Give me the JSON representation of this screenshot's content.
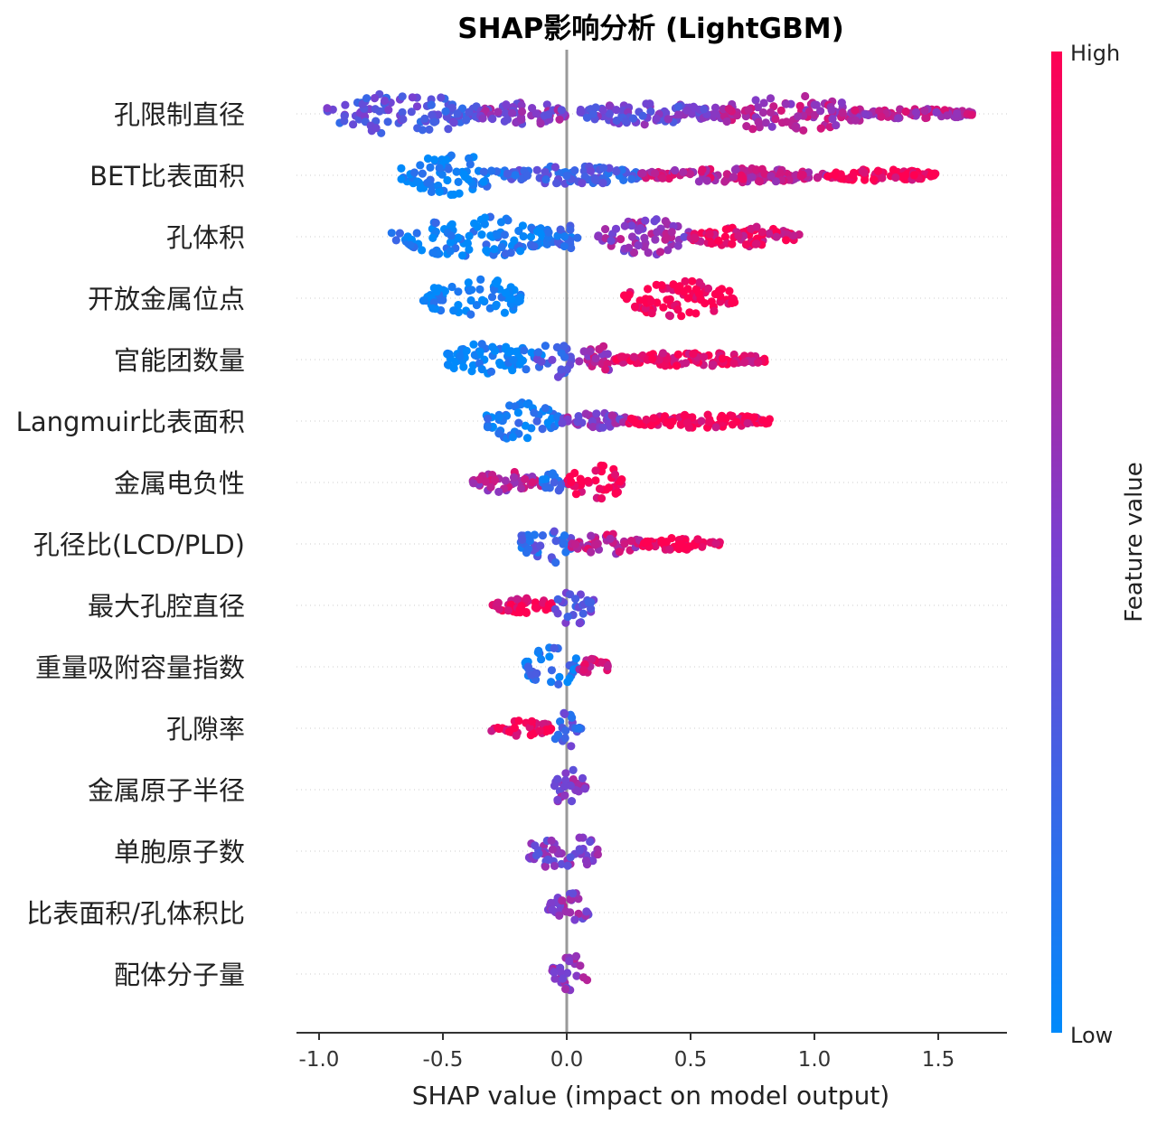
{
  "chart_data": {
    "type": "scatter",
    "title": "SHAP影响分析 (LightGBM)",
    "xlabel": "SHAP value (impact on model output)",
    "xlim": [
      -1.1,
      1.78
    ],
    "x_ticks": [
      -1.0,
      -0.5,
      0.0,
      0.5,
      1.0,
      1.5
    ],
    "x_tick_labels": [
      "-1.0",
      "-0.5",
      "0.0",
      "0.5",
      "1.0",
      "1.5"
    ],
    "colorbar": {
      "title": "Feature value",
      "high": "High",
      "low": "Low",
      "low_color": "#008afb",
      "high_color": "#ff0052"
    },
    "grid": "dotted per-feature row lines",
    "features": [
      {
        "name": "孔限制直径",
        "x_range": [
          -0.97,
          1.65
        ],
        "segments": [
          {
            "from": -0.97,
            "to": -0.35,
            "color": 0.35,
            "spread": 1.0
          },
          {
            "from": -0.35,
            "to": 0.0,
            "color": 0.55,
            "spread": 0.6
          },
          {
            "from": 0.05,
            "to": 0.6,
            "color": 0.45,
            "spread": 0.55
          },
          {
            "from": 0.6,
            "to": 1.2,
            "color": 0.7,
            "spread": 0.9
          },
          {
            "from": 1.2,
            "to": 1.65,
            "color": 0.7,
            "spread": 0.25
          }
        ]
      },
      {
        "name": "BET比表面积",
        "x_range": [
          -0.67,
          1.49
        ],
        "segments": [
          {
            "from": -0.67,
            "to": -0.25,
            "color": 0.05,
            "spread": 1.0
          },
          {
            "from": -0.25,
            "to": 0.3,
            "color": 0.3,
            "spread": 0.45
          },
          {
            "from": 0.3,
            "to": 1.05,
            "color": 0.75,
            "spread": 0.35
          },
          {
            "from": 1.05,
            "to": 1.49,
            "color": 0.97,
            "spread": 0.3
          }
        ]
      },
      {
        "name": "孔体积",
        "x_range": [
          -0.71,
          0.94
        ],
        "segments": [
          {
            "from": -0.71,
            "to": -0.05,
            "color": 0.08,
            "spread": 1.0
          },
          {
            "from": -0.05,
            "to": 0.05,
            "color": 0.2,
            "spread": 0.6
          },
          {
            "from": 0.12,
            "to": 0.5,
            "color": 0.6,
            "spread": 0.9
          },
          {
            "from": 0.5,
            "to": 0.94,
            "color": 0.9,
            "spread": 0.5
          }
        ]
      },
      {
        "name": "开放金属位点",
        "x_range": [
          -0.58,
          0.68
        ],
        "segments": [
          {
            "from": -0.58,
            "to": -0.17,
            "color": 0.0,
            "spread": 1.0
          },
          {
            "from": 0.22,
            "to": 0.68,
            "color": 1.0,
            "spread": 0.9
          }
        ]
      },
      {
        "name": "官能团数量",
        "x_range": [
          -0.5,
          0.8
        ],
        "segments": [
          {
            "from": -0.5,
            "to": -0.1,
            "color": 0.02,
            "spread": 0.8
          },
          {
            "from": -0.12,
            "to": 0.02,
            "color": 0.3,
            "spread": 0.9
          },
          {
            "from": 0.05,
            "to": 0.2,
            "color": 0.7,
            "spread": 0.8
          },
          {
            "from": 0.2,
            "to": 0.8,
            "color": 0.92,
            "spread": 0.35
          }
        ]
      },
      {
        "name": "Langmuir比表面积",
        "x_range": [
          -0.33,
          0.82
        ],
        "segments": [
          {
            "from": -0.33,
            "to": -0.02,
            "color": 0.1,
            "spread": 1.0
          },
          {
            "from": -0.02,
            "to": 0.25,
            "color": 0.55,
            "spread": 0.4
          },
          {
            "from": 0.25,
            "to": 0.82,
            "color": 0.95,
            "spread": 0.35
          }
        ]
      },
      {
        "name": "金属电负性",
        "x_range": [
          -0.38,
          0.23
        ],
        "segments": [
          {
            "from": -0.38,
            "to": -0.1,
            "color": 0.7,
            "spread": 0.55
          },
          {
            "from": -0.1,
            "to": 0.0,
            "color": 0.2,
            "spread": 0.5
          },
          {
            "from": 0.0,
            "to": 0.23,
            "color": 1.0,
            "spread": 1.0
          }
        ]
      },
      {
        "name": "孔径比(LCD/PLD)",
        "x_range": [
          -0.19,
          0.62
        ],
        "segments": [
          {
            "from": -0.19,
            "to": 0.02,
            "color": 0.25,
            "spread": 1.0
          },
          {
            "from": 0.02,
            "to": 0.3,
            "color": 0.75,
            "spread": 0.5
          },
          {
            "from": 0.3,
            "to": 0.62,
            "color": 1.0,
            "spread": 0.3
          }
        ]
      },
      {
        "name": "最大孔腔直径",
        "x_range": [
          -0.3,
          0.11
        ],
        "segments": [
          {
            "from": -0.3,
            "to": -0.05,
            "color": 0.95,
            "spread": 0.4
          },
          {
            "from": -0.05,
            "to": 0.11,
            "color": 0.35,
            "spread": 1.0
          }
        ]
      },
      {
        "name": "重量吸附容量指数",
        "x_range": [
          -0.17,
          0.17
        ],
        "segments": [
          {
            "from": -0.17,
            "to": 0.05,
            "color": 0.15,
            "spread": 1.0
          },
          {
            "from": 0.05,
            "to": 0.17,
            "color": 0.8,
            "spread": 0.4
          }
        ]
      },
      {
        "name": "孔隙率",
        "x_range": [
          -0.31,
          0.06
        ],
        "segments": [
          {
            "from": -0.31,
            "to": -0.06,
            "color": 0.95,
            "spread": 0.4
          },
          {
            "from": -0.06,
            "to": 0.06,
            "color": 0.3,
            "spread": 1.0
          }
        ]
      },
      {
        "name": "金属原子半径",
        "x_range": [
          -0.06,
          0.09
        ],
        "segments": [
          {
            "from": -0.06,
            "to": 0.09,
            "color": 0.55,
            "spread": 1.0
          }
        ]
      },
      {
        "name": "单胞原子数",
        "x_range": [
          -0.16,
          0.13
        ],
        "segments": [
          {
            "from": -0.16,
            "to": 0.13,
            "color": 0.5,
            "spread": 1.0
          }
        ]
      },
      {
        "name": "比表面积/孔体积比",
        "x_range": [
          -0.08,
          0.09
        ],
        "segments": [
          {
            "from": -0.08,
            "to": 0.09,
            "color": 0.55,
            "spread": 1.0
          }
        ]
      },
      {
        "name": "配体分子量",
        "x_range": [
          -0.06,
          0.09
        ],
        "segments": [
          {
            "from": -0.06,
            "to": 0.09,
            "color": 0.6,
            "spread": 1.0
          }
        ]
      }
    ]
  }
}
